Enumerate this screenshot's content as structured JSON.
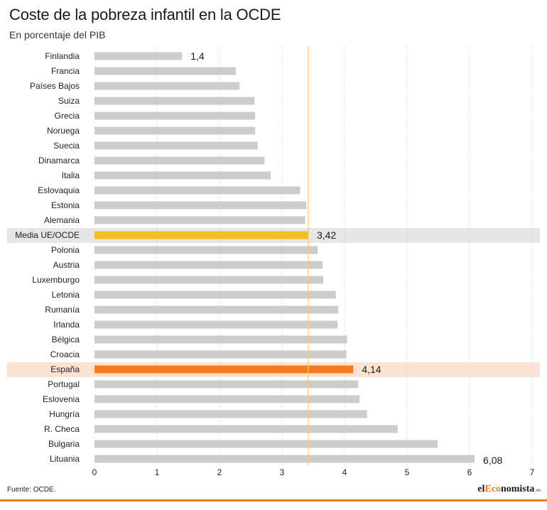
{
  "title": "Coste de la pobreza infantil en la OCDE",
  "subtitle": "En porcentaje del PIB",
  "source": "Fuente: OCDE.",
  "logo": {
    "prefix": "el",
    "accent": "Eco",
    "rest": "nomista",
    "suffix": ".es"
  },
  "colors": {
    "default_bar": "#cccccc",
    "average_bar": "#f6be1e",
    "average_band": "#e6e6e6",
    "spain_bar": "#f47b20",
    "spain_band": "#fbe3d4",
    "reference_line": "#f6c86a",
    "brand": "#f07d1c"
  },
  "chart_data": {
    "type": "bar",
    "orientation": "horizontal",
    "title": "Coste de la pobreza infantil en la OCDE",
    "subtitle": "En porcentaje del PIB",
    "categories": [
      "Finlandia",
      "Francia",
      "Países Bajos",
      "Suiza",
      "Grecia",
      "Noruega",
      "Suecia",
      "Dinamarca",
      "Italia",
      "Eslovaquia",
      "Estonia",
      "Alemania",
      "Media UE/OCDE",
      "Polonia",
      "Austria",
      "Luxemburgo",
      "Letonia",
      "Rumanía",
      "Irlanda",
      "Bélgica",
      "Croacia",
      "España",
      "Portugal",
      "Eslovenia",
      "Hungría",
      "R. Checa",
      "Bulgaria",
      "Lituania"
    ],
    "values": [
      1.4,
      2.26,
      2.32,
      2.56,
      2.57,
      2.57,
      2.61,
      2.72,
      2.82,
      3.29,
      3.39,
      3.37,
      3.42,
      3.57,
      3.65,
      3.66,
      3.86,
      3.9,
      3.89,
      4.04,
      4.03,
      4.14,
      4.22,
      4.24,
      4.36,
      4.85,
      5.49,
      6.08
    ],
    "highlighted": {
      "Media UE/OCDE": "average",
      "España": "spain"
    },
    "data_labels": [
      {
        "category": "Finlandia",
        "text": "1,4"
      },
      {
        "category": "Media UE/OCDE",
        "text": "3,42"
      },
      {
        "category": "España",
        "text": "4,14"
      },
      {
        "category": "Lituania",
        "text": "6,08"
      }
    ],
    "reference_line": 3.42,
    "xlim": [
      0,
      7
    ],
    "xticks": [
      "0",
      "1",
      "2",
      "3",
      "4",
      "5",
      "6",
      "7"
    ],
    "grid": true,
    "xlabel": "",
    "ylabel": ""
  }
}
